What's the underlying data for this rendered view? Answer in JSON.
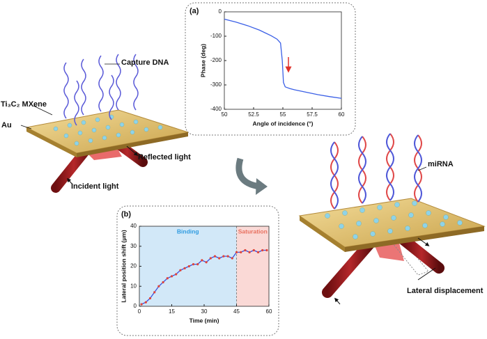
{
  "chart_data": [
    {
      "type": "line",
      "panel_label": "(a)",
      "x": [
        50,
        51,
        52,
        53,
        54,
        54.5,
        54.8,
        54.95,
        55.05,
        55.2,
        55.6,
        56,
        57,
        58,
        59,
        60
      ],
      "values": [
        -30,
        -42,
        -57,
        -75,
        -98,
        -112,
        -128,
        -200,
        -290,
        -308,
        -315,
        -320,
        -330,
        -340,
        -348,
        -355
      ],
      "color": "#3a5fe6",
      "xlim": [
        50,
        60
      ],
      "ylim": [
        -400,
        0
      ],
      "xticks": [
        50,
        52.5,
        55,
        57.5,
        60
      ],
      "yticks": [
        0,
        -100,
        -200,
        -300,
        -400
      ],
      "xlabel": "Angle of incidence (°)",
      "ylabel": "Phase (deg)"
    },
    {
      "type": "line",
      "panel_label": "(b)",
      "markers": true,
      "x": [
        1,
        3,
        5,
        7,
        9,
        11,
        13,
        15,
        17,
        19,
        21,
        23,
        25,
        27,
        29,
        31,
        33,
        35,
        37,
        39,
        41,
        43,
        45,
        47,
        49,
        51,
        53,
        55,
        57,
        59
      ],
      "values": [
        1,
        2,
        4,
        7,
        10,
        12,
        14,
        15,
        16,
        18,
        19,
        20,
        21,
        21,
        23,
        22,
        24,
        25,
        24,
        25,
        25,
        24,
        27,
        27,
        28,
        27,
        28,
        27,
        28,
        28
      ],
      "color": "#3a4fe0",
      "marker_color": "#e0453a",
      "xlim": [
        0,
        60
      ],
      "ylim": [
        0,
        40
      ],
      "xticks": [
        0,
        15,
        30,
        45,
        60
      ],
      "yticks": [
        0,
        10,
        20,
        30,
        40
      ],
      "xlabel": "Time (min)",
      "ylabel": "Lateral position shift (μm)",
      "regions": [
        {
          "label": "Binding",
          "from": 0,
          "to": 45,
          "color": "#d2e8f8",
          "label_color": "#2f9be0"
        },
        {
          "label": "Saturation",
          "from": 45,
          "to": 60,
          "color": "#fad9d6",
          "label_color": "#e8705f"
        }
      ]
    }
  ],
  "illustration": {
    "capture_dna": "Capture DNA",
    "mxene": "Ti₃C₂ MXene",
    "au": "Au",
    "reflected_light": "Reflected light",
    "incident_light": "Incident light",
    "mirna": "miRNA",
    "lateral_displacement": "Lateral  displacement"
  }
}
